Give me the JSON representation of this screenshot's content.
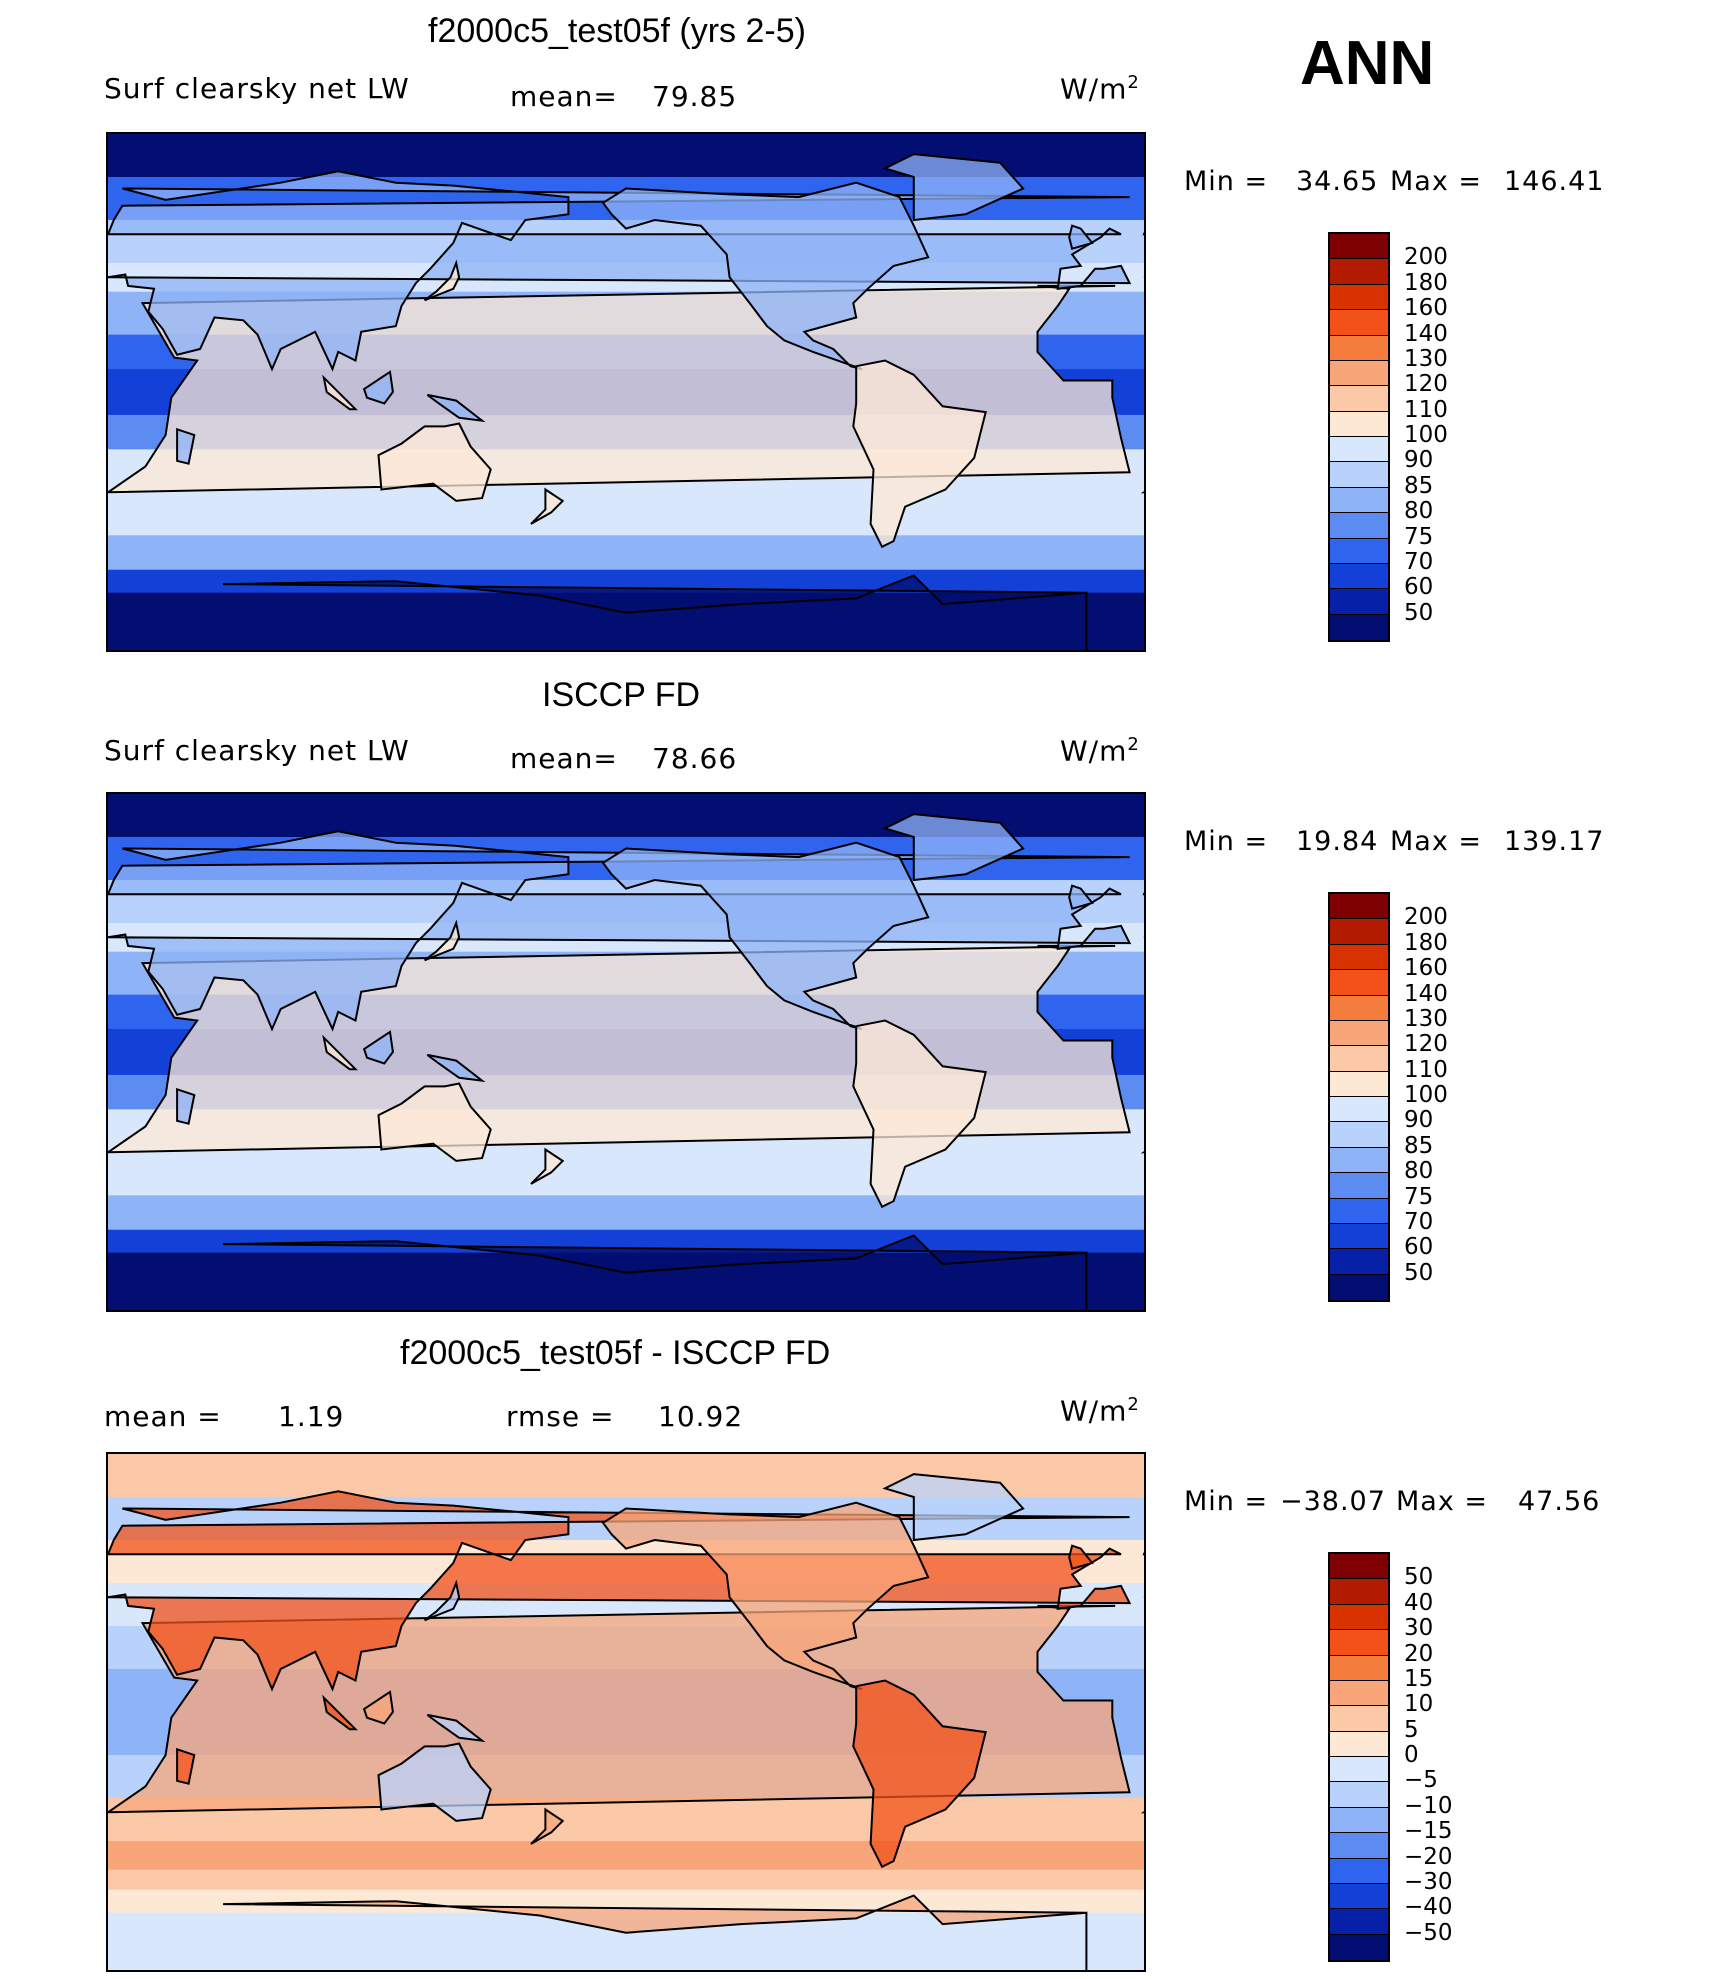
{
  "season": "ANN",
  "units_base": "W/m",
  "units_exp": "2",
  "panels": [
    {
      "title": "f2000c5_test05f (yrs 2-5)",
      "left_label": "Surf  clearsky  net  LW",
      "stat_label": "mean=",
      "stat_value": "79.85",
      "min_label": "Min  =",
      "min_value": "34.65",
      "max_label": "Max  =",
      "max_value": "146.41",
      "scale": "abs",
      "palette": "abs",
      "levels": [
        "200",
        "180",
        "160",
        "140",
        "130",
        "120",
        "110",
        "100",
        "90",
        "85",
        "80",
        "75",
        "70",
        "60",
        "50"
      ]
    },
    {
      "title": "ISCCP FD",
      "left_label": "Surf  clearsky  net  LW",
      "stat_label": "mean=",
      "stat_value": "78.66",
      "min_label": "Min  =",
      "min_value": "19.84",
      "max_label": "Max  =",
      "max_value": "139.17",
      "scale": "abs",
      "palette": "abs",
      "levels": [
        "200",
        "180",
        "160",
        "140",
        "130",
        "120",
        "110",
        "100",
        "90",
        "85",
        "80",
        "75",
        "70",
        "60",
        "50"
      ]
    },
    {
      "title": "f2000c5_test05f - ISCCP FD",
      "left_label": "mean  =",
      "left_value": "1.19",
      "stat_label": "rmse  =",
      "stat_value": "10.92",
      "min_label": "Min  =",
      "min_value": "−38.07",
      "max_label": "Max  =",
      "max_value": "47.56",
      "scale": "diff",
      "palette": "diff",
      "levels": [
        "50",
        "40",
        "30",
        "20",
        "15",
        "10",
        "5",
        "0",
        "−5",
        "−10",
        "−15",
        "−20",
        "−30",
        "−40",
        "−50"
      ]
    }
  ],
  "colors": {
    "abs_palette": [
      "#7f0000",
      "#b31b00",
      "#d83200",
      "#f2521a",
      "#f47d3e",
      "#f8a57a",
      "#fbc9a8",
      "#fde8d5",
      "#d8e7fb",
      "#b9d2fb",
      "#8fb3f7",
      "#5c8cf2",
      "#2f64ee",
      "#1340d6",
      "#0620a8",
      "#020e72"
    ],
    "diff_palette": [
      "#7f0000",
      "#b31b00",
      "#d83200",
      "#f2521a",
      "#f47d3e",
      "#f8a57a",
      "#fbc9a8",
      "#fde8d5",
      "#d8e7fb",
      "#b9d2fb",
      "#8fb3f7",
      "#5c8cf2",
      "#2f64ee",
      "#1340d6",
      "#0620a8",
      "#020e72"
    ]
  }
}
